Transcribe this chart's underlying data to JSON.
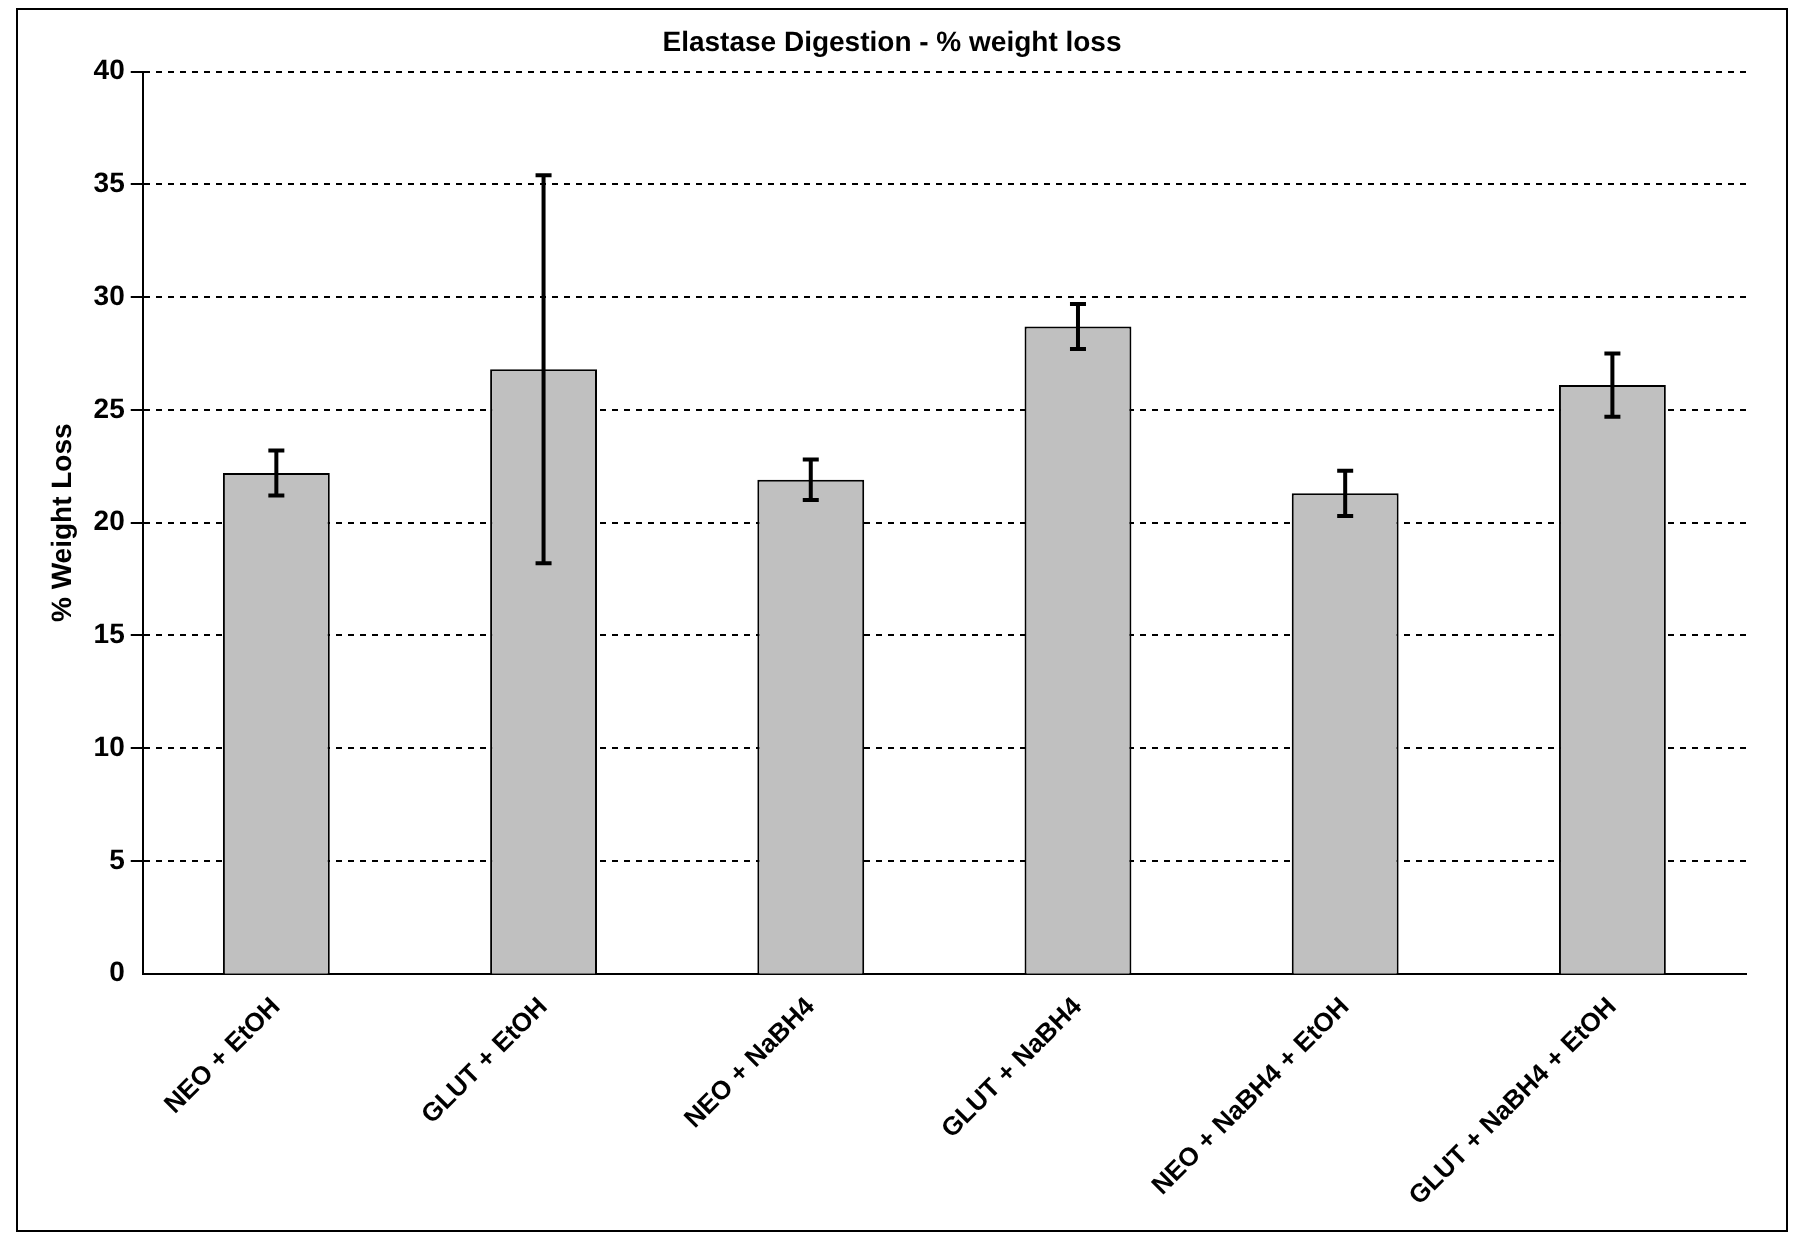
{
  "chart_data": {
    "type": "bar",
    "title": "Elastase Digestion - % weight loss",
    "ylabel": "% Weight Loss",
    "categories": [
      "NEO + EtOH",
      "GLUT + EtOH",
      "NEO + NaBH4",
      "GLUT + NaBH4",
      "NEO + NaBH4 + EtOH",
      "GLUT + NaBH4 + EtOH"
    ],
    "values": [
      22.2,
      26.8,
      21.9,
      28.7,
      21.3,
      26.1
    ],
    "errors": [
      1.0,
      8.6,
      0.9,
      1.0,
      1.0,
      1.4
    ],
    "color": "#c0c0c0",
    "ylim": [
      0,
      40
    ],
    "yticks": [
      0,
      5,
      10,
      15,
      20,
      25,
      30,
      35,
      40
    ],
    "grid": "y",
    "legend": false
  }
}
